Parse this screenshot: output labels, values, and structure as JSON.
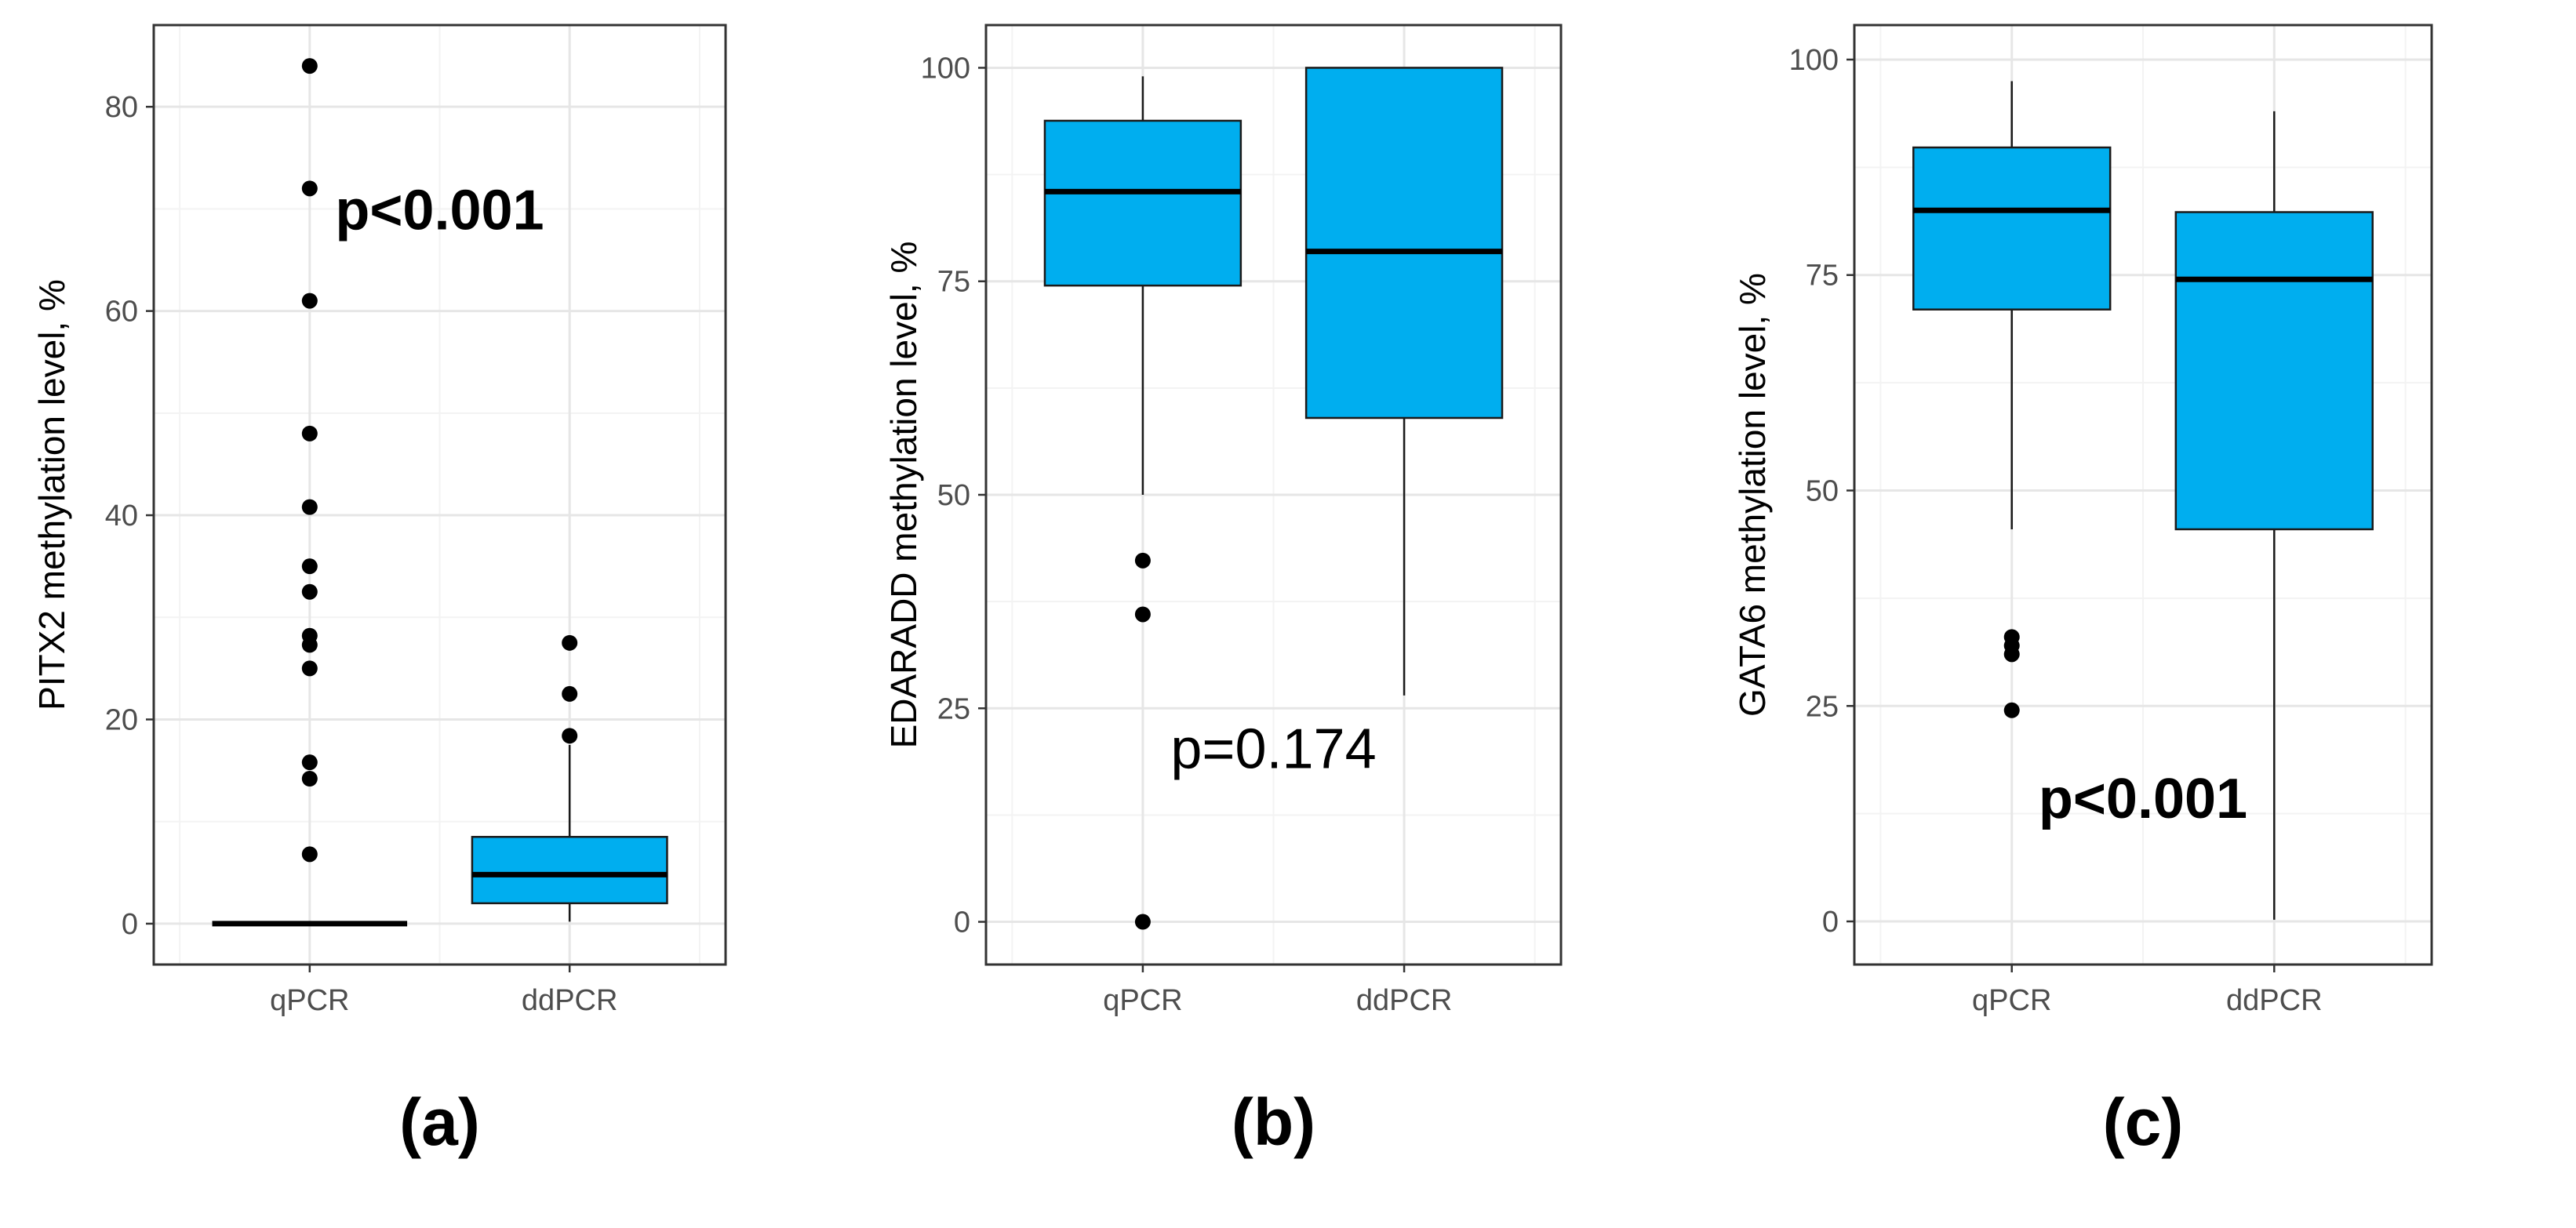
{
  "colors": {
    "box_fill": "#00AEEF",
    "box_stroke": "#1a1a1a",
    "grid_major": "#e6e6e6",
    "grid_minor": "#f3f3f3",
    "panel_border": "#333333",
    "point": "#000000"
  },
  "chart_data": [
    {
      "type": "boxplot",
      "panel_label": "(a)",
      "ylabel": "PITX2 methylation level, %",
      "categories": [
        "qPCR",
        "ddPCR"
      ],
      "ylim": [
        -4,
        88
      ],
      "yticks": [
        0,
        20,
        40,
        60,
        80
      ],
      "minor_yticks": [
        10,
        30,
        50,
        70
      ],
      "annotation": {
        "text": "p<0.001",
        "bold": true,
        "x": 1.5,
        "y": 68
      },
      "boxes": [
        {
          "category": "qPCR",
          "q1": 0,
          "median": 0,
          "q3": 0,
          "whisker_low": 0,
          "whisker_high": 0,
          "outliers": [
            6.8,
            14.2,
            15.8,
            25,
            27.3,
            28.2,
            32.5,
            35,
            40.8,
            48,
            61,
            72,
            84
          ]
        },
        {
          "category": "ddPCR",
          "q1": 2,
          "median": 4.8,
          "q3": 8.5,
          "whisker_low": 0.2,
          "whisker_high": 17.5,
          "outliers": [
            18.4,
            22.5,
            27.5
          ]
        }
      ]
    },
    {
      "type": "boxplot",
      "panel_label": "(b)",
      "ylabel": "EDARADD methylation level, %",
      "categories": [
        "qPCR",
        "ddPCR"
      ],
      "ylim": [
        -5,
        105
      ],
      "yticks": [
        0,
        25,
        50,
        75,
        100
      ],
      "minor_yticks": [
        12.5,
        37.5,
        62.5,
        87.5
      ],
      "annotation": {
        "text": "p=0.174",
        "bold": false,
        "x": 1.5,
        "y": 18
      },
      "boxes": [
        {
          "category": "qPCR",
          "q1": 74.5,
          "median": 85.5,
          "q3": 93.8,
          "whisker_low": 50,
          "whisker_high": 99,
          "outliers": [
            0,
            36,
            42.3
          ]
        },
        {
          "category": "ddPCR",
          "q1": 59,
          "median": 78.5,
          "q3": 100,
          "whisker_low": 26.5,
          "whisker_high": 100,
          "outliers": []
        }
      ]
    },
    {
      "type": "boxplot",
      "panel_label": "(c)",
      "ylabel": "GATA6 methylation level, %",
      "categories": [
        "qPCR",
        "ddPCR"
      ],
      "ylim": [
        -5,
        104
      ],
      "yticks": [
        0,
        25,
        50,
        75,
        100
      ],
      "minor_yticks": [
        12.5,
        37.5,
        62.5,
        87.5
      ],
      "annotation": {
        "text": "p<0.001",
        "bold": true,
        "x": 1.5,
        "y": 12
      },
      "boxes": [
        {
          "category": "qPCR",
          "q1": 71,
          "median": 82.5,
          "q3": 89.8,
          "whisker_low": 45.5,
          "whisker_high": 97.5,
          "outliers": [
            24.5,
            31,
            32,
            33
          ]
        },
        {
          "category": "ddPCR",
          "q1": 45.5,
          "median": 74.5,
          "q3": 82.3,
          "whisker_low": 0.2,
          "whisker_high": 94,
          "outliers": []
        }
      ]
    }
  ]
}
